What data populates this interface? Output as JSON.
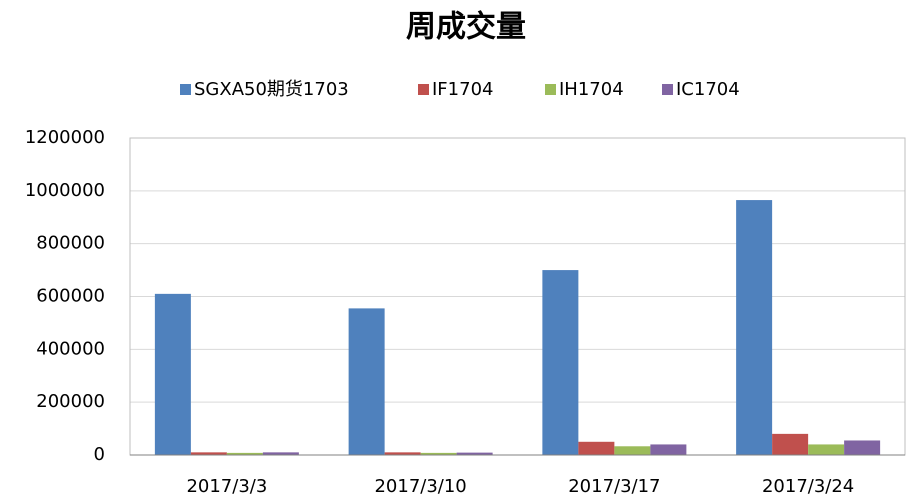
{
  "chart_data": {
    "type": "bar",
    "title": "周成交量",
    "categories": [
      "2017/3/3",
      "2017/3/10",
      "2017/3/17",
      "2017/3/24"
    ],
    "series": [
      {
        "name": "SGXA50期货1703",
        "color": "#4f81bd",
        "values": [
          610000,
          555000,
          700000,
          965000
        ]
      },
      {
        "name": "IF1704",
        "color": "#c0504d",
        "values": [
          10000,
          10000,
          50000,
          80000
        ]
      },
      {
        "name": "IH1704",
        "color": "#9bbb59",
        "values": [
          8000,
          8000,
          33000,
          40000
        ]
      },
      {
        "name": "IC1704",
        "color": "#8064a2",
        "values": [
          10000,
          9000,
          40000,
          55000
        ]
      }
    ],
    "ylim": [
      0,
      1200000
    ],
    "yticks": [
      0,
      200000,
      400000,
      600000,
      800000,
      1000000,
      1200000
    ],
    "grid": true,
    "legend": "top"
  }
}
